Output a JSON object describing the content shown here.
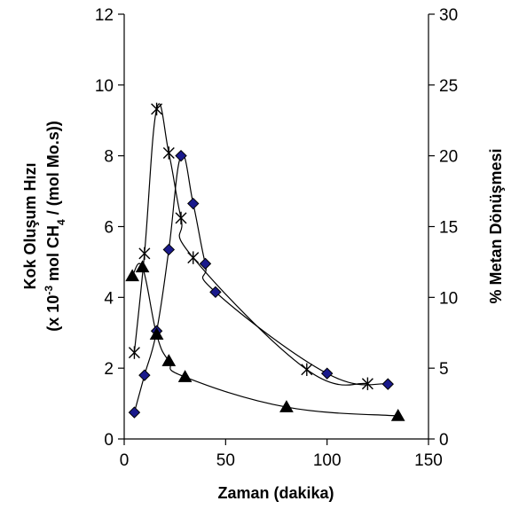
{
  "chart_data": {
    "type": "line",
    "title": "",
    "x_axis": {
      "label": "Zaman (dakika)",
      "range": [
        0,
        150
      ],
      "ticks": [
        0,
        50,
        100,
        150
      ]
    },
    "y_left": {
      "label_line1": "Kok Oluşum Hızı",
      "label_line2_prefix": "(x 10",
      "label_line2_exp": "-3",
      "label_line2_mid": " mol CH",
      "label_line2_sub": "4",
      "label_line2_suffix": " / (mol Mo.s))",
      "range": [
        0,
        12
      ],
      "ticks": [
        0,
        2,
        4,
        6,
        8,
        10,
        12
      ]
    },
    "y_right": {
      "label": "% Metan Dönüşmesi",
      "range": [
        0,
        30
      ],
      "ticks": [
        0,
        5,
        10,
        15,
        20,
        25,
        30
      ]
    },
    "grid": false,
    "series": [
      {
        "marker": "diamond",
        "axis": "left",
        "color": "#1a1a8c",
        "x": [
          5,
          10,
          16,
          22,
          28,
          34,
          40,
          45,
          100,
          130
        ],
        "y": [
          0.75,
          1.8,
          3.05,
          5.35,
          8.0,
          6.65,
          4.95,
          4.15,
          1.85,
          1.55
        ]
      },
      {
        "marker": "asterisk",
        "axis": "right",
        "color": "#000000",
        "x": [
          5,
          10,
          16,
          22,
          28,
          34,
          90,
          120
        ],
        "y": [
          6.1,
          13.1,
          23.3,
          20.2,
          15.6,
          12.8,
          4.9,
          3.9
        ]
      },
      {
        "marker": "triangle",
        "axis": "left",
        "color": "#000000",
        "x": [
          4,
          9,
          16,
          22,
          30,
          80,
          135
        ],
        "y": [
          4.6,
          4.85,
          2.95,
          2.2,
          1.75,
          0.9,
          0.65
        ]
      }
    ]
  }
}
